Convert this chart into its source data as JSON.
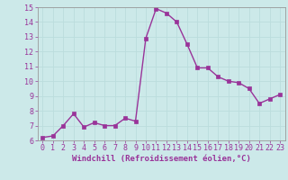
{
  "x": [
    0,
    1,
    2,
    3,
    4,
    5,
    6,
    7,
    8,
    9,
    10,
    11,
    12,
    13,
    14,
    15,
    16,
    17,
    18,
    19,
    20,
    21,
    22,
    23
  ],
  "y": [
    6.2,
    6.3,
    7.0,
    7.8,
    6.9,
    7.2,
    7.0,
    7.0,
    7.5,
    7.3,
    12.9,
    14.9,
    14.6,
    14.0,
    12.5,
    10.9,
    10.9,
    10.3,
    10.0,
    9.9,
    9.5,
    8.5,
    8.8,
    9.1
  ],
  "line_color": "#993399",
  "marker": "s",
  "markersize": 2.5,
  "linewidth": 1.0,
  "xlabel": "Windchill (Refroidissement éolien,°C)",
  "xlim": [
    -0.5,
    23.5
  ],
  "ylim": [
    6,
    15
  ],
  "yticks": [
    6,
    7,
    8,
    9,
    10,
    11,
    12,
    13,
    14,
    15
  ],
  "xticks": [
    0,
    1,
    2,
    3,
    4,
    5,
    6,
    7,
    8,
    9,
    10,
    11,
    12,
    13,
    14,
    15,
    16,
    17,
    18,
    19,
    20,
    21,
    22,
    23
  ],
  "bg_color": "#cce9e9",
  "grid_color": "#bbdddd",
  "line_bg": "#cce9e9",
  "tick_label_color": "#993399",
  "xlabel_color": "#993399",
  "xlabel_fontsize": 6.5,
  "tick_fontsize": 6.0,
  "spine_color": "#999999"
}
